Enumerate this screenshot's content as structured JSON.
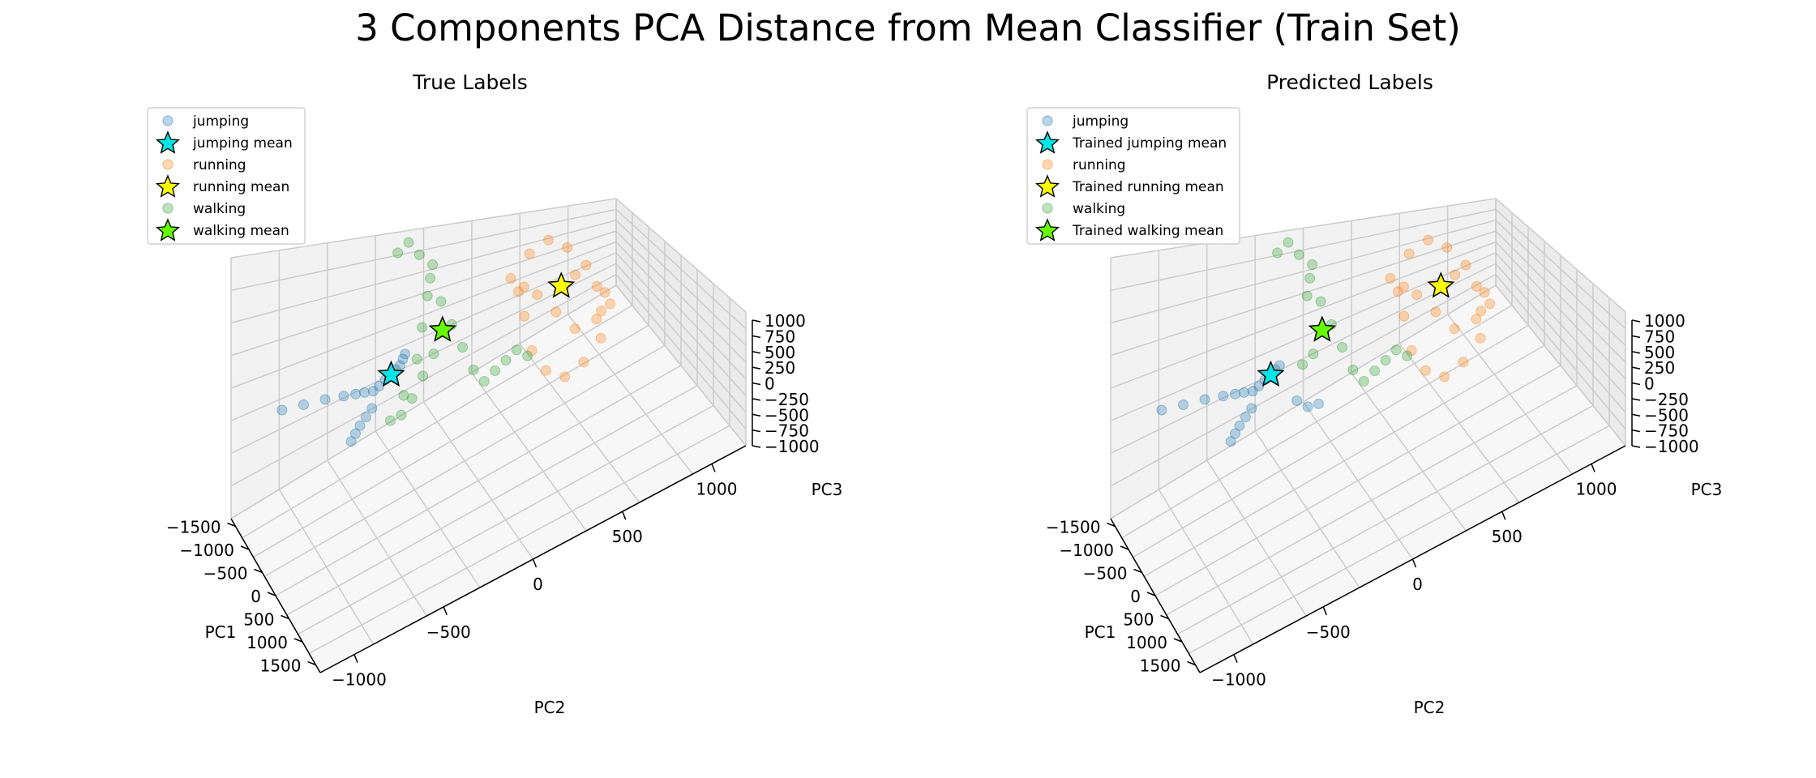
{
  "suptitle": "3 Components PCA Distance from Mean Classifier (Train Set)",
  "colors": {
    "jumping": "#1f77b4",
    "running": "#ff7f0e",
    "walking": "#2ca02c",
    "jumping_mean": "#00e5e5",
    "running_mean": "#ffff00",
    "walking_mean": "#66ff00",
    "pane": "#f2f2f2",
    "grid": "#cccccc"
  },
  "chart_data": [
    {
      "type": "scatter",
      "subtitle": "True Labels",
      "xlabel": "PC1",
      "ylabel": "PC2",
      "zlabel": "PC3",
      "xlim": [
        -1600,
        1600
      ],
      "ylim": [
        -1200,
        1200
      ],
      "zlim": [
        -1000,
        1100
      ],
      "x_ticks": [
        "−1500",
        "−1000",
        "−500",
        "0",
        "500",
        "1000",
        "1500"
      ],
      "y_ticks": [
        "−1000",
        "−500",
        "0",
        "500",
        "1000"
      ],
      "z_ticks": [
        "−1000",
        "−750",
        "−500",
        "−250",
        "0",
        "250",
        "500",
        "750",
        "1000"
      ],
      "grid": true,
      "legend_position": "top-left",
      "legend": [
        {
          "label": "jumping",
          "kind": "point",
          "color_key": "jumping"
        },
        {
          "label": "jumping mean",
          "kind": "star",
          "color_key": "jumping_mean"
        },
        {
          "label": "running",
          "kind": "point",
          "color_key": "running"
        },
        {
          "label": "running mean",
          "kind": "star",
          "color_key": "running_mean"
        },
        {
          "label": "walking",
          "kind": "point",
          "color_key": "walking"
        },
        {
          "label": "walking mean",
          "kind": "star",
          "color_key": "walking_mean"
        }
      ],
      "series": [
        {
          "class": "jumping",
          "points": [
            [
              -1500,
              -900,
              -300
            ],
            [
              -1300,
              -800,
              -250
            ],
            [
              -1100,
              -700,
              -200
            ],
            [
              -900,
              -620,
              -150
            ],
            [
              -700,
              -580,
              -80
            ],
            [
              -500,
              -560,
              0
            ],
            [
              -300,
              -540,
              80
            ],
            [
              -200,
              -520,
              150
            ],
            [
              -100,
              -500,
              230
            ],
            [
              0,
              -480,
              300
            ],
            [
              100,
              -470,
              380
            ],
            [
              200,
              -460,
              450
            ],
            [
              250,
              -450,
              520
            ],
            [
              300,
              -445,
              580
            ],
            [
              0,
              -600,
              100
            ],
            [
              -100,
              -620,
              0
            ],
            [
              -200,
              -640,
              -100
            ],
            [
              -300,
              -650,
              -200
            ],
            [
              -400,
              -660,
              -300
            ]
          ]
        },
        {
          "class": "running",
          "points": [
            [
              -200,
              300,
              500
            ],
            [
              -100,
              400,
              700
            ],
            [
              0,
              500,
              800
            ],
            [
              100,
              600,
              700
            ],
            [
              200,
              700,
              500
            ],
            [
              300,
              750,
              300
            ],
            [
              400,
              760,
              100
            ],
            [
              500,
              740,
              -100
            ],
            [
              400,
              650,
              -300
            ],
            [
              300,
              550,
              -400
            ],
            [
              200,
              450,
              -300
            ],
            [
              100,
              380,
              -100
            ],
            [
              0,
              350,
              200
            ],
            [
              -100,
              330,
              400
            ],
            [
              -300,
              400,
              300
            ],
            [
              -400,
              500,
              100
            ],
            [
              -300,
              600,
              -100
            ],
            [
              -200,
              700,
              -300
            ],
            [
              0,
              800,
              -200
            ],
            [
              200,
              850,
              0
            ],
            [
              300,
              800,
              200
            ],
            [
              100,
              650,
              400
            ]
          ]
        },
        {
          "class": "walking",
          "points": [
            [
              -800,
              -300,
              900
            ],
            [
              -700,
              -250,
              1000
            ],
            [
              -600,
              -200,
              900
            ],
            [
              -500,
              -150,
              700
            ],
            [
              -400,
              -100,
              500
            ],
            [
              -300,
              -50,
              300
            ],
            [
              -200,
              0,
              100
            ],
            [
              -100,
              50,
              -100
            ],
            [
              0,
              100,
              -200
            ],
            [
              100,
              150,
              -100
            ],
            [
              200,
              200,
              0
            ],
            [
              300,
              250,
              100
            ],
            [
              400,
              300,
              50
            ],
            [
              300,
              -200,
              600
            ],
            [
              200,
              -250,
              400
            ],
            [
              100,
              -300,
              200
            ],
            [
              0,
              -350,
              0
            ],
            [
              -100,
              -400,
              -150
            ],
            [
              -200,
              -450,
              -200
            ],
            [
              -300,
              -350,
              -100
            ],
            [
              -400,
              -250,
              100
            ],
            [
              -500,
              -200,
              300
            ],
            [
              -600,
              -150,
              500
            ],
            [
              -700,
              -100,
              700
            ]
          ]
        }
      ],
      "means": [
        {
          "class": "jumping",
          "point": [
            0,
            -480,
            300
          ]
        },
        {
          "class": "running",
          "point": [
            0,
            580,
            300
          ]
        },
        {
          "class": "walking",
          "point": [
            0,
            -160,
            460
          ]
        }
      ]
    },
    {
      "type": "scatter",
      "subtitle": "Predicted Labels",
      "xlabel": "PC1",
      "ylabel": "PC2",
      "zlabel": "PC3",
      "xlim": [
        -1600,
        1600
      ],
      "ylim": [
        -1200,
        1200
      ],
      "zlim": [
        -1000,
        1100
      ],
      "x_ticks": [
        "−1500",
        "−1000",
        "−500",
        "0",
        "500",
        "1000",
        "1500"
      ],
      "y_ticks": [
        "−1000",
        "−500",
        "0",
        "500",
        "1000"
      ],
      "z_ticks": [
        "−1000",
        "−750",
        "−500",
        "−250",
        "0",
        "250",
        "500",
        "750",
        "1000"
      ],
      "grid": true,
      "legend_position": "top-left",
      "legend": [
        {
          "label": "jumping",
          "kind": "point",
          "color_key": "jumping"
        },
        {
          "label": "Trained jumping mean",
          "kind": "star",
          "color_key": "jumping_mean"
        },
        {
          "label": "running",
          "kind": "point",
          "color_key": "running"
        },
        {
          "label": "Trained running mean",
          "kind": "star",
          "color_key": "running_mean"
        },
        {
          "label": "walking",
          "kind": "point",
          "color_key": "walking"
        },
        {
          "label": "Trained walking mean",
          "kind": "star",
          "color_key": "walking_mean"
        }
      ],
      "series": [
        {
          "class": "jumping",
          "points": [
            [
              -1500,
              -900,
              -300
            ],
            [
              -1300,
              -800,
              -250
            ],
            [
              -1100,
              -700,
              -200
            ],
            [
              -900,
              -620,
              -150
            ],
            [
              -700,
              -580,
              -80
            ],
            [
              -500,
              -560,
              0
            ],
            [
              -300,
              -540,
              80
            ],
            [
              -200,
              -520,
              150
            ],
            [
              -100,
              -500,
              230
            ],
            [
              0,
              -480,
              300
            ],
            [
              100,
              -470,
              380
            ],
            [
              200,
              -460,
              450
            ],
            [
              0,
              -600,
              100
            ],
            [
              -100,
              -620,
              0
            ],
            [
              -200,
              -640,
              -100
            ],
            [
              -300,
              -650,
              -200
            ],
            [
              -400,
              -660,
              -300
            ],
            [
              -100,
              -300,
              -100
            ],
            [
              0,
              -250,
              -150
            ],
            [
              100,
              -200,
              -120
            ]
          ]
        },
        {
          "class": "running",
          "points": [
            [
              -200,
              300,
              500
            ],
            [
              -100,
              400,
              700
            ],
            [
              0,
              500,
              800
            ],
            [
              100,
              600,
              700
            ],
            [
              200,
              700,
              500
            ],
            [
              300,
              750,
              300
            ],
            [
              400,
              760,
              100
            ],
            [
              500,
              740,
              -100
            ],
            [
              400,
              650,
              -300
            ],
            [
              300,
              550,
              -400
            ],
            [
              200,
              450,
              -300
            ],
            [
              100,
              380,
              -100
            ],
            [
              0,
              350,
              200
            ],
            [
              -100,
              330,
              400
            ],
            [
              -300,
              400,
              300
            ],
            [
              -400,
              500,
              100
            ],
            [
              -300,
              600,
              -100
            ],
            [
              -200,
              700,
              -300
            ],
            [
              0,
              800,
              -200
            ],
            [
              200,
              850,
              0
            ],
            [
              300,
              800,
              200
            ],
            [
              100,
              650,
              400
            ]
          ]
        },
        {
          "class": "walking",
          "points": [
            [
              -800,
              -300,
              900
            ],
            [
              -700,
              -250,
              1000
            ],
            [
              -600,
              -200,
              900
            ],
            [
              -500,
              -150,
              700
            ],
            [
              -400,
              -100,
              500
            ],
            [
              -300,
              -50,
              300
            ],
            [
              -200,
              0,
              100
            ],
            [
              -100,
              50,
              -100
            ],
            [
              0,
              100,
              -200
            ],
            [
              100,
              150,
              -100
            ],
            [
              200,
              200,
              0
            ],
            [
              300,
              250,
              100
            ],
            [
              400,
              300,
              50
            ],
            [
              300,
              -200,
              600
            ],
            [
              -600,
              -150,
              500
            ],
            [
              -700,
              -100,
              700
            ],
            [
              200,
              -250,
              400
            ],
            [
              100,
              -300,
              300
            ]
          ]
        }
      ],
      "means": [
        {
          "class": "jumping",
          "point": [
            0,
            -480,
            300
          ]
        },
        {
          "class": "running",
          "point": [
            0,
            580,
            300
          ]
        },
        {
          "class": "walking",
          "point": [
            0,
            -160,
            460
          ]
        }
      ]
    }
  ]
}
